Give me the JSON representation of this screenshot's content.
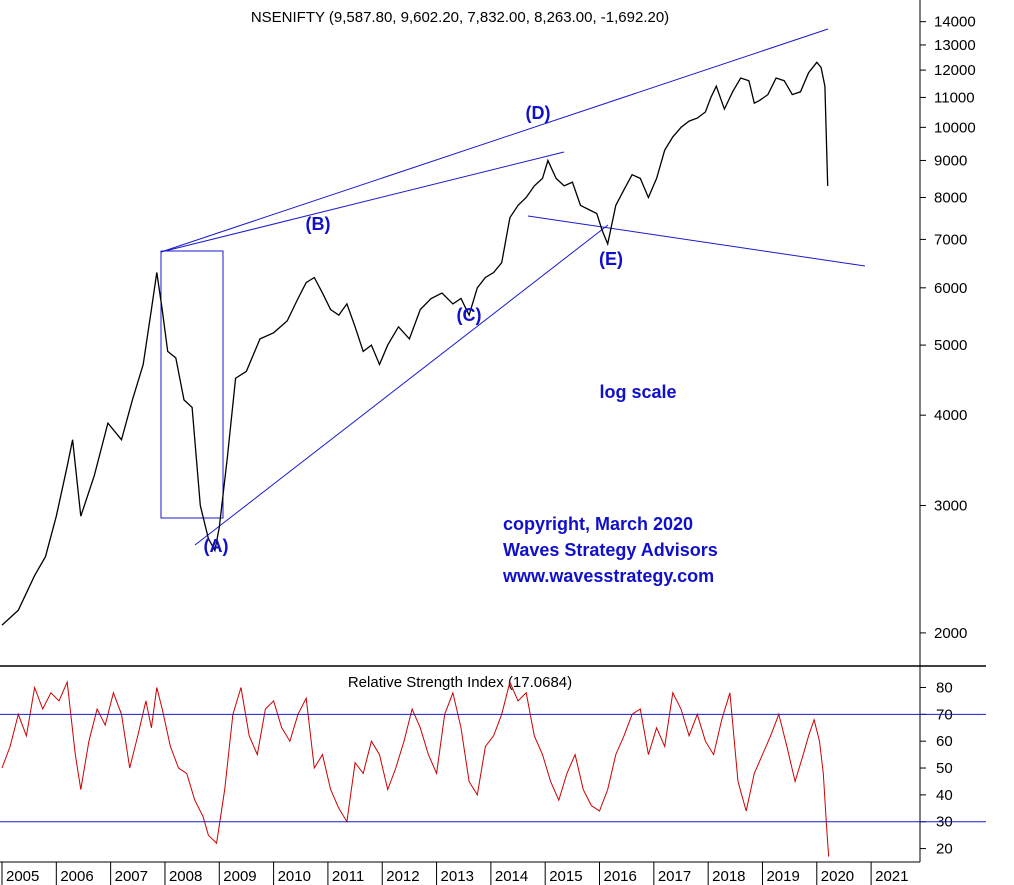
{
  "chart_data": [
    {
      "type": "line",
      "title": "NSENIFTY (9,587.80, 9,602.20, 7,832.00, 8,263.00, -1,692.20)",
      "scale": "log",
      "scale_label": "log scale",
      "ylim": [
        1800,
        15000
      ],
      "y_ticks": [
        14000,
        13000,
        12000,
        11000,
        10000,
        9000,
        8000,
        7000,
        6000,
        5000,
        4000,
        3000,
        2000
      ],
      "x_range": [
        2005.0,
        2021.9
      ],
      "x_ticks": [
        "2005",
        "2006",
        "2007",
        "2008",
        "2009",
        "2010",
        "2011",
        "2012",
        "2013",
        "2014",
        "2015",
        "2016",
        "2017",
        "2018",
        "2019",
        "2020",
        "2021"
      ],
      "series": [
        {
          "x": [
            2005.0,
            2005.3,
            2005.6,
            2005.8,
            2006.0,
            2006.2,
            2006.3,
            2006.45,
            2006.7,
            2006.95,
            2007.2,
            2007.4,
            2007.6,
            2007.75,
            2007.85,
            2007.95,
            2008.05,
            2008.2,
            2008.35,
            2008.5,
            2008.65,
            2008.8,
            2008.92,
            2009.0,
            2009.15,
            2009.3,
            2009.5,
            2009.75,
            2010.0,
            2010.25,
            2010.45,
            2010.6,
            2010.75,
            2010.9,
            2011.05,
            2011.2,
            2011.35,
            2011.5,
            2011.65,
            2011.8,
            2011.95,
            2012.1,
            2012.3,
            2012.5,
            2012.7,
            2012.9,
            2013.1,
            2013.3,
            2013.45,
            2013.6,
            2013.75,
            2013.9,
            2014.05,
            2014.2,
            2014.35,
            2014.5,
            2014.65,
            2014.8,
            2014.95,
            2015.05,
            2015.2,
            2015.35,
            2015.5,
            2015.65,
            2015.8,
            2015.95,
            2016.05,
            2016.15,
            2016.3,
            2016.45,
            2016.6,
            2016.75,
            2016.9,
            2017.05,
            2017.2,
            2017.35,
            2017.5,
            2017.65,
            2017.8,
            2017.95,
            2018.05,
            2018.15,
            2018.3,
            2018.45,
            2018.6,
            2018.75,
            2018.85,
            2018.95,
            2019.1,
            2019.25,
            2019.4,
            2019.55,
            2019.7,
            2019.85,
            2020.0,
            2020.08,
            2020.15,
            2020.2
          ],
          "values": [
            2050,
            2150,
            2400,
            2550,
            2900,
            3400,
            3700,
            2900,
            3300,
            3900,
            3700,
            4200,
            4700,
            5600,
            6300,
            5600,
            4900,
            4800,
            4200,
            4100,
            3000,
            2700,
            2600,
            2800,
            3500,
            4500,
            4600,
            5100,
            5200,
            5400,
            5800,
            6100,
            6200,
            5900,
            5600,
            5500,
            5700,
            5300,
            4900,
            5000,
            4700,
            5000,
            5300,
            5100,
            5600,
            5800,
            5900,
            5700,
            5800,
            5500,
            6000,
            6200,
            6300,
            6500,
            7500,
            7800,
            8000,
            8300,
            8500,
            9000,
            8500,
            8300,
            8400,
            7800,
            7700,
            7600,
            7200,
            6900,
            7800,
            8200,
            8600,
            8500,
            8000,
            8500,
            9300,
            9700,
            10000,
            10200,
            10300,
            10500,
            11000,
            11400,
            10600,
            11200,
            11700,
            11600,
            10800,
            10900,
            11100,
            11700,
            11600,
            11100,
            11200,
            11900,
            12300,
            12100,
            11400,
            8300
          ]
        }
      ],
      "wave_labels": [
        "(A)",
        "(B)",
        "(C)",
        "(D)",
        "(E)"
      ],
      "annotations": [
        "copyright, March  2020",
        "Waves Strategy Advisors",
        "www.wavesstrategy.com"
      ],
      "colors": {
        "price": "#000000",
        "trendline": "#1a1acc",
        "label": "#1010cc",
        "rsi": "#cc0000"
      }
    },
    {
      "type": "line",
      "title": "Relative Strength Index (17.0684)",
      "ylim": [
        15,
        88
      ],
      "y_ticks": [
        80,
        70,
        60,
        50,
        40,
        30,
        20
      ],
      "reference_lines": [
        70,
        30
      ],
      "series": [
        {
          "x": [
            2005.0,
            2005.15,
            2005.3,
            2005.45,
            2005.6,
            2005.75,
            2005.9,
            2006.05,
            2006.2,
            2006.35,
            2006.45,
            2006.6,
            2006.75,
            2006.9,
            2007.05,
            2007.2,
            2007.35,
            2007.5,
            2007.65,
            2007.75,
            2007.85,
            2007.95,
            2008.1,
            2008.25,
            2008.4,
            2008.55,
            2008.7,
            2008.8,
            2008.95,
            2009.1,
            2009.25,
            2009.4,
            2009.55,
            2009.7,
            2009.85,
            2010.0,
            2010.15,
            2010.3,
            2010.45,
            2010.6,
            2010.75,
            2010.9,
            2011.05,
            2011.2,
            2011.35,
            2011.5,
            2011.65,
            2011.8,
            2011.95,
            2012.1,
            2012.25,
            2012.4,
            2012.55,
            2012.7,
            2012.85,
            2013.0,
            2013.15,
            2013.3,
            2013.45,
            2013.6,
            2013.75,
            2013.9,
            2014.05,
            2014.2,
            2014.35,
            2014.5,
            2014.65,
            2014.8,
            2014.95,
            2015.1,
            2015.25,
            2015.4,
            2015.55,
            2015.7,
            2015.85,
            2016.0,
            2016.15,
            2016.3,
            2016.45,
            2016.6,
            2016.75,
            2016.9,
            2017.05,
            2017.2,
            2017.35,
            2017.5,
            2017.65,
            2017.8,
            2017.95,
            2018.1,
            2018.25,
            2018.4,
            2018.55,
            2018.7,
            2018.85,
            2019.0,
            2019.15,
            2019.3,
            2019.45,
            2019.6,
            2019.75,
            2019.85,
            2019.95,
            2020.05,
            2020.12,
            2020.18,
            2020.22
          ],
          "values": [
            50,
            58,
            70,
            62,
            80,
            72,
            78,
            75,
            82,
            55,
            42,
            60,
            72,
            66,
            78,
            70,
            50,
            62,
            75,
            65,
            80,
            72,
            58,
            50,
            48,
            38,
            32,
            25,
            22,
            42,
            70,
            80,
            62,
            55,
            72,
            75,
            65,
            60,
            70,
            76,
            50,
            55,
            42,
            35,
            30,
            52,
            48,
            60,
            55,
            42,
            50,
            60,
            72,
            65,
            55,
            48,
            70,
            78,
            65,
            45,
            40,
            58,
            62,
            70,
            82,
            75,
            78,
            62,
            55,
            45,
            38,
            48,
            55,
            42,
            36,
            34,
            42,
            55,
            62,
            70,
            72,
            55,
            65,
            58,
            78,
            72,
            62,
            70,
            60,
            55,
            68,
            78,
            45,
            34,
            48,
            55,
            62,
            70,
            58,
            45,
            55,
            62,
            68,
            60,
            48,
            28,
            17
          ]
        }
      ]
    }
  ]
}
